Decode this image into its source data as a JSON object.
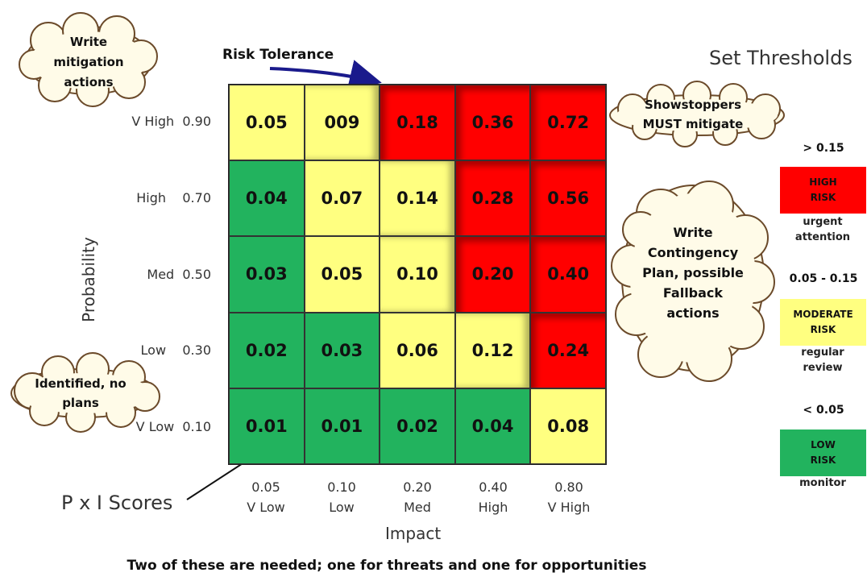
{
  "title": "Set Thresholds",
  "risk_tolerance_label": "Risk Tolerance",
  "colors": {
    "green": "#22b35e",
    "yellow": "#ffff80",
    "red": "#ff0000"
  },
  "matrix": {
    "rows": [
      {
        "label": "V High  0.90",
        "cells": [
          {
            "value": "0.05",
            "zone": "yellow"
          },
          {
            "value": "009",
            "zone": "yellow"
          },
          {
            "value": "0.18",
            "zone": "red"
          },
          {
            "value": "0.36",
            "zone": "red"
          },
          {
            "value": "0.72",
            "zone": "red"
          }
        ]
      },
      {
        "label": "High    0.70",
        "cells": [
          {
            "value": "0.04",
            "zone": "green"
          },
          {
            "value": "0.07",
            "zone": "yellow"
          },
          {
            "value": "0.14",
            "zone": "yellow"
          },
          {
            "value": "0.28",
            "zone": "red"
          },
          {
            "value": "0.56",
            "zone": "red"
          }
        ]
      },
      {
        "label": "Med  0.50",
        "cells": [
          {
            "value": "0.03",
            "zone": "green"
          },
          {
            "value": "0.05",
            "zone": "yellow"
          },
          {
            "value": "0.10",
            "zone": "yellow"
          },
          {
            "value": "0.20",
            "zone": "red"
          },
          {
            "value": "0.40",
            "zone": "red"
          }
        ]
      },
      {
        "label": "Low    0.30",
        "cells": [
          {
            "value": "0.02",
            "zone": "green"
          },
          {
            "value": "0.03",
            "zone": "green"
          },
          {
            "value": "0.06",
            "zone": "yellow"
          },
          {
            "value": "0.12",
            "zone": "yellow"
          },
          {
            "value": "0.24",
            "zone": "red"
          }
        ]
      },
      {
        "label": "V Low  0.10",
        "cells": [
          {
            "value": "0.01",
            "zone": "green"
          },
          {
            "value": "0.01",
            "zone": "green"
          },
          {
            "value": "0.02",
            "zone": "green"
          },
          {
            "value": "0.04",
            "zone": "green"
          },
          {
            "value": "0.08",
            "zone": "yellow"
          }
        ]
      }
    ],
    "columns": [
      {
        "value": "0.05",
        "name": "V Low"
      },
      {
        "value": "0.10",
        "name": "Low"
      },
      {
        "value": "0.20",
        "name": "Med"
      },
      {
        "value": "0.40",
        "name": "High"
      },
      {
        "value": "0.80",
        "name": "V High"
      }
    ]
  },
  "axes": {
    "x_title": "Impact",
    "y_title": "Probability"
  },
  "callouts": {
    "mitigation": [
      "Write",
      "mitigation",
      "actions"
    ],
    "showstoppers": [
      "Showstoppers",
      "MUST mitigate"
    ],
    "contingency": [
      "Write",
      "Contingency",
      "Plan, possible",
      "Fallback",
      "actions"
    ],
    "identified": [
      "Identified, no",
      "plans"
    ]
  },
  "pxi_label": "P x I Scores",
  "legend": [
    {
      "range": "> 0.15",
      "label": "HIGH\nRISK",
      "note": "urgent\nattention",
      "zone": "red"
    },
    {
      "range": "0.05 - 0.15",
      "label": "MODERATE\nRISK",
      "note": "regular\nreview",
      "zone": "yellow"
    },
    {
      "range": "< 0.05",
      "label": "LOW\nRISK",
      "note": "monitor",
      "zone": "green"
    }
  ],
  "footer": "Two of these are needed; one for threats and one for opportunities"
}
